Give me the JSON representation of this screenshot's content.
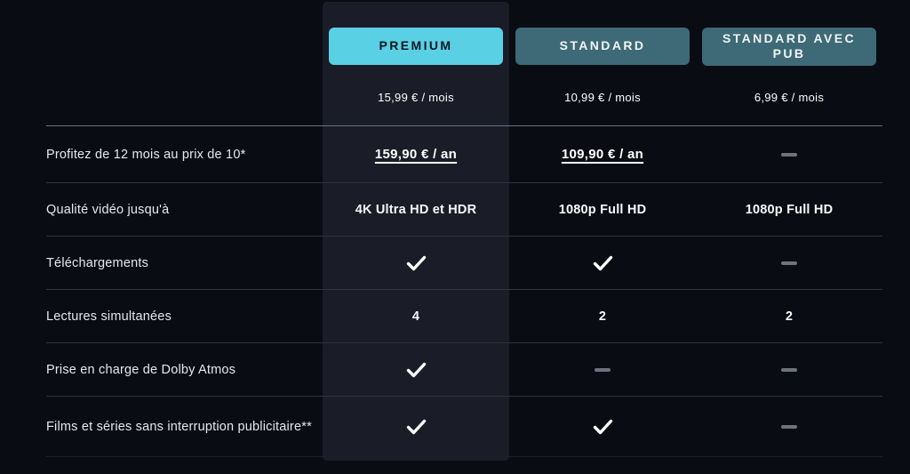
{
  "colors": {
    "background": "#0a0c14",
    "highlight_column": "#1a1d27",
    "premium_accent": "#5ad0e4",
    "plan_button_teal": "#3d6a76",
    "dash": "#6e737d",
    "check": "#ffffff"
  },
  "plans": [
    {
      "id": "premium",
      "name": "PREMIUM",
      "price": "15,99 € / mois",
      "highlighted": true
    },
    {
      "id": "standard",
      "name": "STANDARD",
      "price": "10,99 € / mois",
      "highlighted": false
    },
    {
      "id": "standard-avec-pub",
      "name": "STANDARD AVEC PUB",
      "price": "6,99 € / mois",
      "highlighted": false
    }
  ],
  "table": {
    "rows": [
      {
        "label": "Profitez de 12 mois au prix de 10*",
        "cells": [
          {
            "type": "link",
            "text": "159,90 € / an"
          },
          {
            "type": "link",
            "text": "109,90 € / an"
          },
          {
            "type": "dash"
          }
        ]
      },
      {
        "label": "Qualité vidéo jusqu'à",
        "cells": [
          {
            "type": "text",
            "text": "4K Ultra HD et HDR"
          },
          {
            "type": "text",
            "text": "1080p Full HD"
          },
          {
            "type": "text",
            "text": "1080p Full HD"
          }
        ]
      },
      {
        "label": "Téléchargements",
        "cells": [
          {
            "type": "check"
          },
          {
            "type": "check"
          },
          {
            "type": "dash"
          }
        ]
      },
      {
        "label": "Lectures simultanées",
        "cells": [
          {
            "type": "text",
            "text": "4"
          },
          {
            "type": "text",
            "text": "2"
          },
          {
            "type": "text",
            "text": "2"
          }
        ]
      },
      {
        "label": "Prise en charge de Dolby Atmos",
        "cells": [
          {
            "type": "check"
          },
          {
            "type": "dash"
          },
          {
            "type": "dash"
          }
        ]
      },
      {
        "label": "Films et séries sans interruption publicitaire**",
        "cells": [
          {
            "type": "check"
          },
          {
            "type": "check"
          },
          {
            "type": "dash"
          }
        ]
      }
    ]
  }
}
